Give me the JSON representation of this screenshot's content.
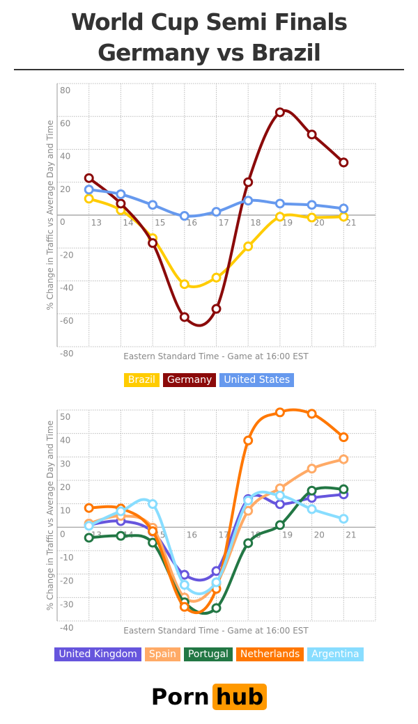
{
  "header": {
    "line1": "World Cup Semi Finals",
    "line2": "Germany vs Brazil"
  },
  "logo": {
    "part1": "Porn",
    "part2": "hub"
  },
  "chart_data": [
    {
      "type": "line",
      "ylabel": "% Change in Traffic vs Average Day and Time",
      "xlabel": "Eastern Standard Time - Game at 16:00 EST",
      "x": [
        13,
        14,
        15,
        16,
        17,
        18,
        19,
        20,
        21
      ],
      "xlim": [
        12,
        22
      ],
      "ylim": [
        -80,
        80
      ],
      "yticks": [
        80,
        60,
        40,
        20,
        0,
        -20,
        -40,
        -60,
        -80
      ],
      "xticks": [
        13,
        14,
        15,
        16,
        17,
        18,
        19,
        20,
        21
      ],
      "grid": true,
      "legend": "bottom",
      "series": [
        {
          "name": "Brazil",
          "color": "#ffcc00",
          "values": [
            10,
            3,
            -14,
            -42,
            -38,
            -19,
            -1,
            -1.5,
            -1
          ]
        },
        {
          "name": "Germany",
          "color": "#8b0a0a",
          "values": [
            22.5,
            7,
            -17,
            -62,
            -57,
            20,
            62.5,
            49,
            32
          ]
        },
        {
          "name": "United States",
          "color": "#6699ee",
          "values": [
            15.5,
            12.7,
            6.2,
            -0.5,
            2,
            8.8,
            7,
            6.2,
            4
          ]
        }
      ]
    },
    {
      "type": "line",
      "ylabel": "% Change in Traffic vs Average Day and Time",
      "xlabel": "Eastern Standard Time - Game at 16:00 EST",
      "x": [
        13,
        14,
        15,
        16,
        17,
        18,
        19,
        20,
        21
      ],
      "xlim": [
        12,
        22
      ],
      "ylim": [
        -40,
        50
      ],
      "yticks": [
        50,
        40,
        30,
        20,
        10,
        0,
        -10,
        -20,
        -30,
        -40
      ],
      "xticks": [
        13,
        14,
        15,
        16,
        17,
        18,
        19,
        20,
        21
      ],
      "grid": true,
      "legend": "bottom",
      "series": [
        {
          "name": "United Kingdom",
          "color": "#6655dd",
          "values": [
            1,
            2.6,
            -1.9,
            -20.3,
            -18.7,
            12,
            9.8,
            12.5,
            14
          ]
        },
        {
          "name": "Spain",
          "color": "#ffaa66",
          "values": [
            1.6,
            4.8,
            -0.2,
            -30,
            -24,
            7,
            16.6,
            25,
            29
          ]
        },
        {
          "name": "Portugal",
          "color": "#227744",
          "values": [
            -4.5,
            -3.7,
            -6.6,
            -32,
            -34.5,
            -6.8,
            0.9,
            15.6,
            16.2
          ]
        },
        {
          "name": "Netherlands",
          "color": "#ff7700",
          "values": [
            8.2,
            8,
            -1.7,
            -34,
            -26.3,
            37,
            49,
            48.4,
            38.4
          ]
        },
        {
          "name": "Argentina",
          "color": "#88ddff",
          "values": [
            0.6,
            6.8,
            9.9,
            -24.6,
            -23.5,
            11.4,
            13.5,
            7.7,
            3.6
          ]
        }
      ]
    }
  ]
}
